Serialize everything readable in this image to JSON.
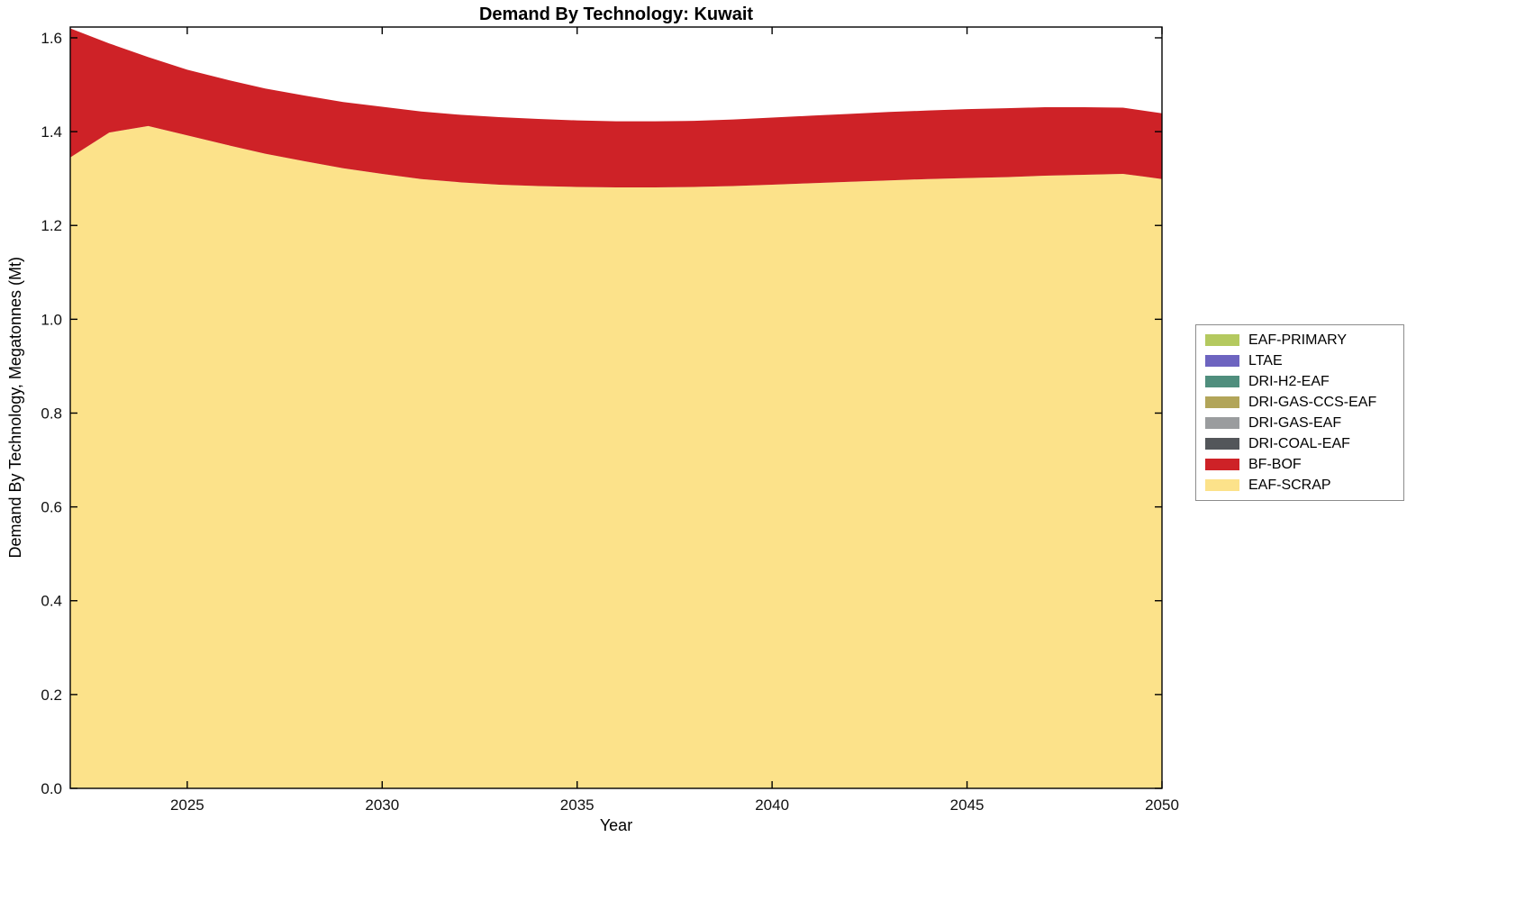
{
  "chart_data": {
    "type": "area",
    "stacked": true,
    "title": "Demand By Technology: Kuwait",
    "xlabel": "Year",
    "ylabel": "Demand By Technology, Megatonnes (Mt)",
    "xlim": [
      2022,
      2050
    ],
    "ylim": [
      0,
      1.623
    ],
    "grid": false,
    "legend_position": "right-outside",
    "xticks": [
      2025,
      2030,
      2035,
      2040,
      2045,
      2050
    ],
    "xtick_labels": [
      "2025",
      "2030",
      "2035",
      "2040",
      "2045",
      "2050"
    ],
    "yticks": [
      0,
      0.2,
      0.4,
      0.6,
      0.8,
      1.0,
      1.2,
      1.4,
      1.6
    ],
    "ytick_labels": [
      "0.0",
      "0.2",
      "0.4",
      "0.6",
      "0.8",
      "1.0",
      "1.2",
      "1.4",
      "1.6"
    ],
    "years": [
      2022,
      2023,
      2024,
      2025,
      2026,
      2027,
      2028,
      2029,
      2030,
      2031,
      2032,
      2033,
      2034,
      2035,
      2036,
      2037,
      2038,
      2039,
      2040,
      2041,
      2042,
      2043,
      2044,
      2045,
      2046,
      2047,
      2048,
      2049,
      2050
    ],
    "series": [
      {
        "name": "EAF-SCRAP",
        "color": "#FCE28A",
        "values": [
          1.345,
          1.398,
          1.412,
          1.392,
          1.372,
          1.353,
          1.337,
          1.322,
          1.31,
          1.299,
          1.292,
          1.287,
          1.284,
          1.282,
          1.281,
          1.281,
          1.282,
          1.284,
          1.287,
          1.29,
          1.293,
          1.296,
          1.299,
          1.301,
          1.303,
          1.306,
          1.308,
          1.31,
          1.299
        ]
      },
      {
        "name": "BF-BOF",
        "color": "#CE2227",
        "values": [
          0.275,
          0.19,
          0.147,
          0.14,
          0.139,
          0.139,
          0.14,
          0.141,
          0.143,
          0.144,
          0.144,
          0.144,
          0.143,
          0.142,
          0.141,
          0.141,
          0.141,
          0.142,
          0.143,
          0.144,
          0.145,
          0.146,
          0.146,
          0.147,
          0.147,
          0.146,
          0.144,
          0.141,
          0.14
        ]
      },
      {
        "name": "DRI-COAL-EAF",
        "color": "#53565A",
        "values": 0
      },
      {
        "name": "DRI-GAS-EAF",
        "color": "#9A9C9E",
        "values": 0
      },
      {
        "name": "DRI-GAS-CCS-EAF",
        "color": "#B2A559",
        "values": 0
      },
      {
        "name": "DRI-H2-EAF",
        "color": "#4F8E7D",
        "values": 0
      },
      {
        "name": "LTAE",
        "color": "#6D64C0",
        "values": 0
      },
      {
        "name": "EAF-PRIMARY",
        "color": "#B4C95F",
        "values": 0
      }
    ],
    "legend_order": "reverse-of-series",
    "axis_color": "#000000"
  }
}
